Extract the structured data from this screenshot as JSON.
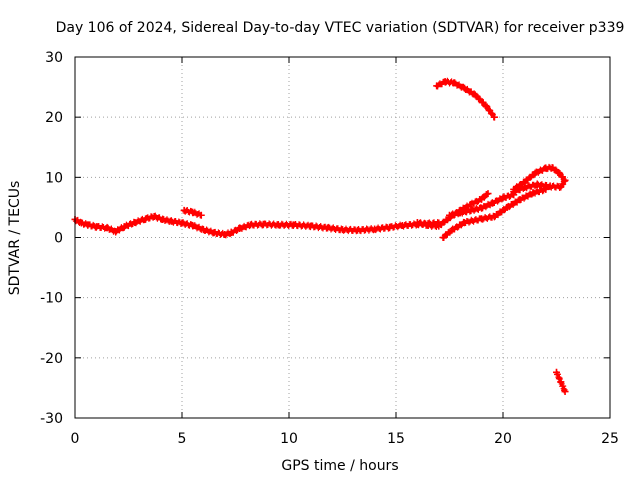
{
  "chart_data": {
    "type": "scatter",
    "title": "Day 106 of 2024, Sidereal Day-to-day VTEC variation (SDTVAR) for receiver p339",
    "xlabel": "GPS time / hours",
    "ylabel": "SDTVAR / TECUs",
    "xlim": [
      0,
      25
    ],
    "ylim": [
      -30,
      30
    ],
    "xticks": [
      0,
      5,
      10,
      15,
      20,
      25
    ],
    "yticks": [
      -30,
      -20,
      -10,
      0,
      10,
      20,
      30
    ],
    "x_tick_labels": [
      "0",
      "5",
      "10",
      "15",
      "20",
      "25"
    ],
    "y_tick_labels": [
      "-30",
      "-20",
      "-10",
      "0",
      "10",
      "20",
      "30"
    ],
    "grid": true,
    "marker": "plus",
    "series": [
      {
        "name": "main trace",
        "color": "#ff0000",
        "x": [
          0.0,
          0.3,
          0.6,
          1.0,
          1.5,
          1.9,
          2.3,
          2.8,
          3.3,
          3.7,
          4.1,
          4.5,
          5.0,
          5.5,
          6.0,
          6.5,
          7.0,
          7.3,
          7.7,
          8.2,
          8.8,
          9.5,
          10.2,
          11.0,
          11.8,
          12.5,
          13.2,
          14.0,
          14.7,
          15.3,
          16.0,
          16.5,
          17.0
        ],
        "y": [
          3.0,
          2.4,
          2.1,
          1.8,
          1.6,
          1.0,
          1.8,
          2.5,
          3.1,
          3.5,
          3.0,
          2.7,
          2.4,
          2.0,
          1.3,
          0.8,
          0.5,
          0.8,
          1.5,
          2.1,
          2.2,
          2.1,
          2.1,
          1.9,
          1.6,
          1.3,
          1.2,
          1.4,
          1.7,
          2.0,
          2.2,
          2.3,
          2.4
        ]
      },
      {
        "name": "short arc near 5-6h",
        "color": "#ff0000",
        "x": [
          5.1,
          5.5,
          5.9
        ],
        "y": [
          4.5,
          4.2,
          3.7
        ]
      },
      {
        "name": "rising branch A",
        "color": "#ff0000",
        "x": [
          16.0,
          16.5,
          17.0,
          17.5,
          18.0,
          18.5,
          19.0,
          19.3
        ],
        "y": [
          2.5,
          2.0,
          1.9,
          3.3,
          4.5,
          5.5,
          6.4,
          7.3
        ]
      },
      {
        "name": "rising branch B",
        "color": "#ff0000",
        "x": [
          17.2,
          17.6,
          18.2,
          19.0,
          19.6,
          20.2,
          20.8,
          21.4,
          22.0
        ],
        "y": [
          0.0,
          1.2,
          2.5,
          3.1,
          3.5,
          5.0,
          6.3,
          7.4,
          8.0
        ]
      },
      {
        "name": "rising branch C",
        "color": "#ff0000",
        "x": [
          17.5,
          18.0,
          18.5,
          19.0,
          19.5,
          20.0,
          20.5
        ],
        "y": [
          3.7,
          4.1,
          4.5,
          4.9,
          5.7,
          6.6,
          7.1
        ]
      },
      {
        "name": "upper loop",
        "color": "#ff0000",
        "x": [
          20.5,
          21.0,
          21.5,
          22.0,
          22.3,
          22.6,
          22.9,
          22.7,
          22.2,
          21.6,
          21.0,
          20.5
        ],
        "y": [
          8.0,
          9.2,
          10.7,
          11.5,
          11.6,
          10.8,
          9.5,
          8.4,
          8.5,
          8.8,
          8.3,
          7.6
        ]
      },
      {
        "name": "top arc",
        "color": "#ff0000",
        "x": [
          16.9,
          17.3,
          17.7,
          18.2,
          18.7,
          19.2,
          19.6
        ],
        "y": [
          25.2,
          25.9,
          25.7,
          24.8,
          23.7,
          21.9,
          20.0
        ]
      },
      {
        "name": "bottom segment",
        "color": "#ff0000",
        "x": [
          22.5,
          22.7,
          22.9
        ],
        "y": [
          -22.4,
          -24.0,
          -25.6
        ]
      }
    ]
  }
}
